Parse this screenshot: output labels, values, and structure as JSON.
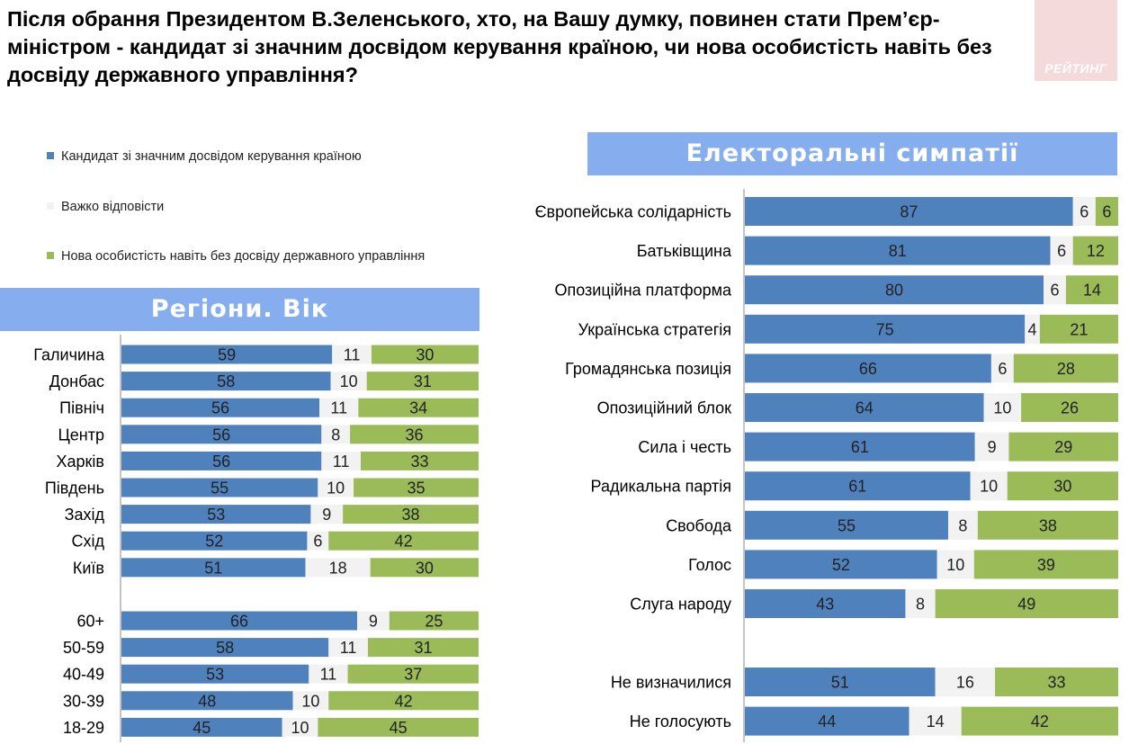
{
  "title": "Після обрання Президентом В.Зеленського, хто, на Вашу думку, повинен стати Прем’єр-міністром - кандидат зі значним досвідом керування країною, чи нова особистість навіть без досвіду державного управління?",
  "logo_text": "РЕЙТИНГ",
  "colors": {
    "experienced": "#4f81bd",
    "hard_to_say": "#f2f2f2",
    "new_person": "#9bbb59",
    "banner": "#86aeef"
  },
  "legend": [
    {
      "label": "Кандидат зі значним досвідом керування країною",
      "color": "#4f81bd"
    },
    {
      "label": "Важко відповісти",
      "color": "#f2f2f2"
    },
    {
      "label": "Нова особистість навіть без досвіду державного управління",
      "color": "#9bbb59"
    }
  ],
  "panels": {
    "left_title": "Регіони. Вік",
    "right_title": "Електоральні симпатії"
  },
  "chart_data": [
    {
      "type": "bar",
      "orientation": "horizontal",
      "stacked": true,
      "title": "Регіони. Вік",
      "series_names": [
        "Кандидат зі значним досвідом керування країною",
        "Важко відповісти",
        "Нова особистість навіть без досвіду державного управління"
      ],
      "groups": [
        {
          "rows": [
            {
              "label": "Галичина",
              "values": [
                59,
                11,
                30
              ]
            },
            {
              "label": "Донбас",
              "values": [
                58,
                10,
                31
              ]
            },
            {
              "label": "Північ",
              "values": [
                56,
                11,
                34
              ]
            },
            {
              "label": "Центр",
              "values": [
                56,
                8,
                36
              ]
            },
            {
              "label": "Харків",
              "values": [
                56,
                11,
                33
              ]
            },
            {
              "label": "Південь",
              "values": [
                55,
                10,
                35
              ]
            },
            {
              "label": "Захід",
              "values": [
                53,
                9,
                38
              ]
            },
            {
              "label": "Схід",
              "values": [
                52,
                6,
                42
              ]
            },
            {
              "label": "Київ",
              "values": [
                51,
                18,
                30
              ]
            }
          ]
        },
        {
          "rows": [
            {
              "label": "60+",
              "values": [
                66,
                9,
                25
              ]
            },
            {
              "label": "50-59",
              "values": [
                58,
                11,
                31
              ]
            },
            {
              "label": "40-49",
              "values": [
                53,
                11,
                37
              ]
            },
            {
              "label": "30-39",
              "values": [
                48,
                10,
                42
              ]
            },
            {
              "label": "18-29",
              "values": [
                45,
                10,
                45
              ]
            }
          ]
        }
      ]
    },
    {
      "type": "bar",
      "orientation": "horizontal",
      "stacked": true,
      "title": "Електоральні симпатії",
      "series_names": [
        "Кандидат зі значним досвідом керування країною",
        "Важко відповісти",
        "Нова особистість навіть без досвіду державного управління"
      ],
      "groups": [
        {
          "rows": [
            {
              "label": "Європейська солідарність",
              "values": [
                87,
                6,
                6
              ]
            },
            {
              "label": "Батьківщина",
              "values": [
                81,
                6,
                12
              ]
            },
            {
              "label": "Опозиційна платформа",
              "values": [
                80,
                6,
                14
              ]
            },
            {
              "label": "Українська стратегія",
              "values": [
                75,
                4,
                21
              ]
            },
            {
              "label": "Громадянська позиція",
              "values": [
                66,
                6,
                28
              ]
            },
            {
              "label": "Опозиційний блок",
              "values": [
                64,
                10,
                26
              ]
            },
            {
              "label": "Сила і честь",
              "values": [
                61,
                9,
                29
              ]
            },
            {
              "label": "Радикальна партія",
              "values": [
                61,
                10,
                30
              ]
            },
            {
              "label": "Свобода",
              "values": [
                55,
                8,
                38
              ]
            },
            {
              "label": "Голос",
              "values": [
                52,
                10,
                39
              ]
            },
            {
              "label": "Слуга народу",
              "values": [
                43,
                8,
                49
              ]
            }
          ]
        },
        {
          "rows": [
            {
              "label": "Не визначилися",
              "values": [
                51,
                16,
                33
              ]
            },
            {
              "label": "Не голосують",
              "values": [
                44,
                14,
                42
              ]
            }
          ]
        }
      ]
    }
  ]
}
